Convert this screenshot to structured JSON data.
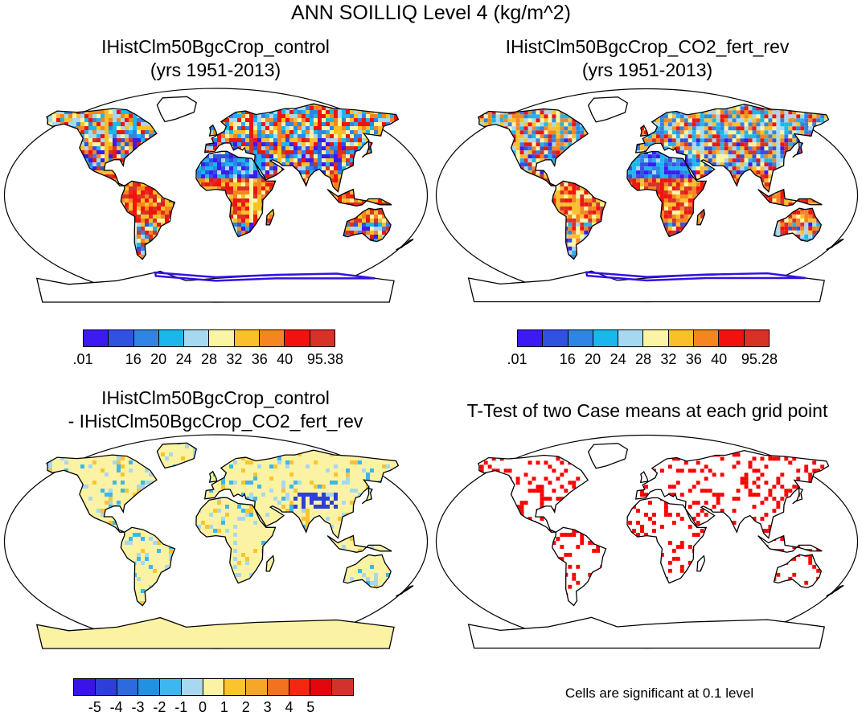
{
  "title": "ANN SOILLIQ Level 4 (kg/m^2)",
  "panels": {
    "top_left": {
      "title_line1": "IHistClm50BgcCrop_control",
      "title_line2": "(yrs 1951-2013)"
    },
    "top_right": {
      "title_line1": "IHistClm50BgcCrop_CO2_fert_rev",
      "title_line2": "(yrs 1951-2013)"
    },
    "bottom_left": {
      "title_line1": "IHistClm50BgcCrop_control",
      "title_line2": "- IHistClm50BgcCrop_CO2_fert_rev"
    },
    "bottom_right": {
      "title_line1": "T-Test of two Case means at each grid point",
      "note": "Cells are significant at 0.1 level"
    }
  },
  "colorbars": {
    "field": {
      "colors": [
        "#3d19f2",
        "#3151e0",
        "#2e85e6",
        "#1cb6ef",
        "#a6d9f0",
        "#fbf4a4",
        "#f9c02a",
        "#f58520",
        "#f2120d",
        "#d73228"
      ]
    },
    "top_left_labels": [
      ".01",
      "16",
      "20",
      "24",
      "28",
      "32",
      "36",
      "40",
      "95.38"
    ],
    "top_right_labels": [
      ".01",
      "16",
      "20",
      "24",
      "28",
      "32",
      "36",
      "40",
      "95.28"
    ],
    "difference": {
      "colors": [
        "#3b12e8",
        "#2e3fd9",
        "#2b6bdf",
        "#1f93e3",
        "#3db7ef",
        "#a8d8f0",
        "#fbf3a3",
        "#f9c42d",
        "#f8a628",
        "#f4711f",
        "#f1290e",
        "#e2060d",
        "#d2322d"
      ],
      "labels": [
        "-5",
        "-4",
        "-3",
        "-2",
        "-1",
        "0",
        "1",
        "2",
        "3",
        "4",
        "5"
      ]
    }
  },
  "map_colors": {
    "ocean": "#ffffff",
    "coast": "#000000",
    "significant": "#ff0000",
    "ice": "#3311e6"
  }
}
